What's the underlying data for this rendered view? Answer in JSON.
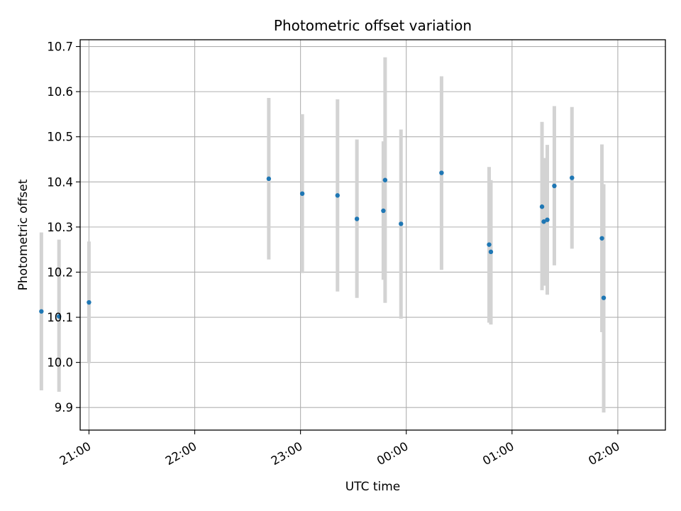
{
  "chart_data": {
    "type": "scatter",
    "title": "Photometric offset variation",
    "xlabel": "UTC time",
    "ylabel": "Photometric offset",
    "x_axis": {
      "kind": "time",
      "range": [
        "20:55",
        "02:27"
      ],
      "ticks": [
        "21:00",
        "22:00",
        "23:00",
        "00:00",
        "01:00",
        "02:00"
      ],
      "tick_rotation": "30 degrees"
    },
    "y_axis": {
      "range": [
        9.85,
        10.715
      ],
      "ticks": [
        "9.9",
        "10.0",
        "10.1",
        "10.2",
        "10.3",
        "10.4",
        "10.5",
        "10.6",
        "10.7"
      ]
    },
    "grid": true,
    "errorbar_color": "#d3d3d3",
    "marker_color": "#1f77b4",
    "points": [
      {
        "time": "20:33",
        "y": 10.113,
        "ylo": 9.938,
        "yhi": 10.288
      },
      {
        "time": "20:43",
        "y": 10.102,
        "ylo": 9.935,
        "yhi": 10.272
      },
      {
        "time": "21:00",
        "y": 10.133,
        "ylo": 9.998,
        "yhi": 10.268
      },
      {
        "time": "22:42",
        "y": 10.407,
        "ylo": 10.228,
        "yhi": 10.586
      },
      {
        "time": "23:01",
        "y": 10.374,
        "ylo": 10.198,
        "yhi": 10.55
      },
      {
        "time": "23:21",
        "y": 10.37,
        "ylo": 10.157,
        "yhi": 10.583
      },
      {
        "time": "23:32",
        "y": 10.318,
        "ylo": 10.143,
        "yhi": 10.494
      },
      {
        "time": "23:47",
        "y": 10.336,
        "ylo": 10.183,
        "yhi": 10.49
      },
      {
        "time": "23:48",
        "y": 10.404,
        "ylo": 10.132,
        "yhi": 10.676
      },
      {
        "time": "23:57",
        "y": 10.307,
        "ylo": 10.097,
        "yhi": 10.516
      },
      {
        "time": "00:20",
        "y": 10.42,
        "ylo": 10.205,
        "yhi": 10.634
      },
      {
        "time": "00:47",
        "y": 10.261,
        "ylo": 10.088,
        "yhi": 10.433
      },
      {
        "time": "00:48",
        "y": 10.245,
        "ylo": 10.084,
        "yhi": 10.404
      },
      {
        "time": "01:17",
        "y": 10.345,
        "ylo": 10.16,
        "yhi": 10.533
      },
      {
        "time": "01:18",
        "y": 10.312,
        "ylo": 10.17,
        "yhi": 10.453
      },
      {
        "time": "01:20",
        "y": 10.316,
        "ylo": 10.15,
        "yhi": 10.482
      },
      {
        "time": "01:24",
        "y": 10.391,
        "ylo": 10.215,
        "yhi": 10.568
      },
      {
        "time": "01:34",
        "y": 10.409,
        "ylo": 10.252,
        "yhi": 10.566
      },
      {
        "time": "01:51",
        "y": 10.275,
        "ylo": 10.067,
        "yhi": 10.483
      },
      {
        "time": "01:52",
        "y": 10.143,
        "ylo": 9.889,
        "yhi": 10.395
      }
    ]
  }
}
